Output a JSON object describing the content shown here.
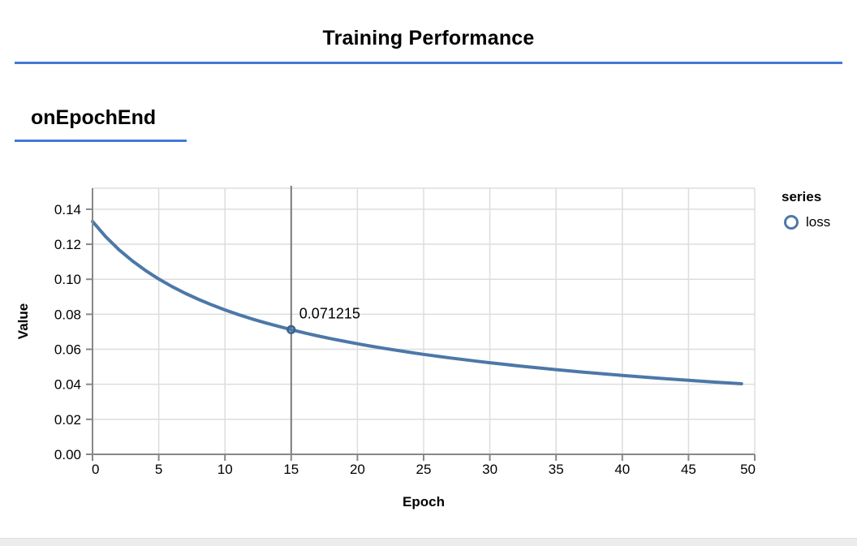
{
  "header": {
    "title": "Training Performance"
  },
  "section": {
    "heading": "onEpochEnd"
  },
  "chart_data": {
    "type": "line",
    "title": "",
    "xlabel": "Epoch",
    "ylabel": "Value",
    "xlim": [
      0,
      50
    ],
    "ylim": [
      0,
      0.152
    ],
    "grid": true,
    "legend": {
      "title": "series",
      "position": "right",
      "entries": [
        {
          "label": "loss",
          "color": "#4c78a8"
        }
      ]
    },
    "x_ticks": {
      "values": [
        0,
        5,
        10,
        15,
        20,
        25,
        30,
        35,
        40,
        45,
        50
      ],
      "labels": [
        "0",
        "5",
        "10",
        "15",
        "20",
        "25",
        "30",
        "35",
        "40",
        "45",
        "50"
      ]
    },
    "y_ticks": {
      "values": [
        0,
        0.02,
        0.04,
        0.06,
        0.08,
        0.1,
        0.12,
        0.14
      ],
      "labels": [
        "0.00",
        "0.02",
        "0.04",
        "0.06",
        "0.08",
        "0.10",
        "0.12",
        "0.14"
      ]
    },
    "series": [
      {
        "name": "loss",
        "x": [
          0,
          1,
          2,
          3,
          4,
          5,
          6,
          7,
          8,
          9,
          10,
          11,
          12,
          13,
          14,
          15,
          16,
          17,
          18,
          19,
          20,
          21,
          22,
          23,
          24,
          25,
          26,
          27,
          28,
          29,
          30,
          31,
          32,
          33,
          34,
          35,
          36,
          37,
          38,
          39,
          40,
          41,
          42,
          43,
          44,
          45,
          46,
          47,
          48,
          49
        ],
        "values": [
          0.13304,
          0.124271,
          0.116871,
          0.110518,
          0.105004,
          0.100155,
          0.095845,
          0.091985,
          0.088508,
          0.085357,
          0.082489,
          0.079865,
          0.077455,
          0.075232,
          0.073174,
          0.071215,
          0.069366,
          0.067676,
          0.066087,
          0.064589,
          0.063173,
          0.061834,
          0.060563,
          0.059355,
          0.058206,
          0.057111,
          0.056065,
          0.055065,
          0.054108,
          0.05319,
          0.052309,
          0.051463,
          0.050649,
          0.049865,
          0.04911,
          0.048381,
          0.047677,
          0.046997,
          0.04634,
          0.045703,
          0.045087,
          0.04449,
          0.043911,
          0.043349,
          0.042804,
          0.042274,
          0.041759,
          0.041258,
          0.040771,
          0.040297
        ]
      }
    ],
    "hover": {
      "x": 15,
      "value": 0.071215,
      "label": "0.071215"
    },
    "colors": {
      "line": "#4c78a8",
      "marker_stroke": "#3a628f",
      "grid": "#dddddd",
      "axis": "#888888",
      "hover_rule": "#7a7a7a",
      "heading_rule": "#4379d8",
      "text": "#000000"
    }
  }
}
